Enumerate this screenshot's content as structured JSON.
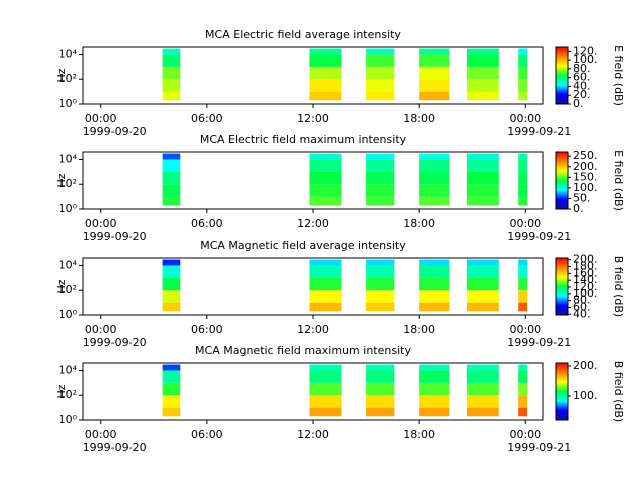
{
  "chart_data": [
    {
      "type": "spectrogram",
      "title": "MCA  Electric field average intensity",
      "ylabel": "Hz",
      "zlabel": "E field (dB)",
      "log_y": true,
      "xlim": [
        -1,
        25
      ],
      "ylim": [
        1,
        40000
      ],
      "xticks": [
        {
          "value": 0,
          "label": "00:00"
        },
        {
          "value": 6,
          "label": "06:00"
        },
        {
          "value": 12,
          "label": "12:00"
        },
        {
          "value": 18,
          "label": "18:00"
        },
        {
          "value": 24,
          "label": "00:00"
        }
      ],
      "xdates": [
        {
          "value": 0,
          "label": "1999-09-20"
        },
        {
          "value": 24,
          "label": "1999-09-21"
        }
      ],
      "yticks": [
        {
          "value": 1,
          "label": "10⁰"
        },
        {
          "value": 100,
          "label": "10²"
        },
        {
          "value": 10000,
          "label": "10⁴"
        }
      ],
      "zlim": [
        0,
        130
      ],
      "zticks": [
        {
          "value": 0,
          "label": "0."
        },
        {
          "value": 20,
          "label": "20."
        },
        {
          "value": 40,
          "label": "40."
        },
        {
          "value": 60,
          "label": "60."
        },
        {
          "value": 80,
          "label": "80."
        },
        {
          "value": 100,
          "label": "100."
        },
        {
          "value": 120,
          "label": "120."
        }
      ],
      "colormap": [
        "#10109a",
        "#0000ff",
        "#00ffff",
        "#00ff40",
        "#ffff00",
        "#ff8000",
        "#ff0000"
      ],
      "bands": [
        2,
        10,
        100,
        1000,
        10000,
        30000
      ],
      "segments": [
        {
          "start": 3.5,
          "end": 4.5,
          "values": [
            85,
            80,
            75,
            60,
            50
          ]
        },
        {
          "start": 11.8,
          "end": 13.6,
          "values": [
            95,
            90,
            80,
            65,
            55
          ]
        },
        {
          "start": 15.0,
          "end": 16.6,
          "values": [
            90,
            85,
            80,
            70,
            50
          ]
        },
        {
          "start": 18.0,
          "end": 19.7,
          "values": [
            100,
            90,
            85,
            70,
            55
          ]
        },
        {
          "start": 20.7,
          "end": 22.5,
          "values": [
            85,
            80,
            75,
            65,
            55
          ]
        },
        {
          "start": 23.6,
          "end": 24.1,
          "values": [
            80,
            75,
            70,
            60,
            45
          ]
        }
      ]
    },
    {
      "type": "spectrogram",
      "title": "MCA  Electric field maximum intensity",
      "ylabel": "Hz",
      "zlabel": "E field (dB)",
      "log_y": true,
      "xlim": [
        -1,
        25
      ],
      "ylim": [
        1,
        40000
      ],
      "xticks": [
        {
          "value": 0,
          "label": "00:00"
        },
        {
          "value": 6,
          "label": "06:00"
        },
        {
          "value": 12,
          "label": "12:00"
        },
        {
          "value": 18,
          "label": "18:00"
        },
        {
          "value": 24,
          "label": "00:00"
        }
      ],
      "xdates": [
        {
          "value": 0,
          "label": "1999-09-20"
        },
        {
          "value": 24,
          "label": "1999-09-21"
        }
      ],
      "yticks": [
        {
          "value": 1,
          "label": "10⁰"
        },
        {
          "value": 100,
          "label": "10²"
        },
        {
          "value": 10000,
          "label": "10⁴"
        }
      ],
      "zlim": [
        0,
        270
      ],
      "zticks": [
        {
          "value": 0,
          "label": "0."
        },
        {
          "value": 50,
          "label": "50."
        },
        {
          "value": 100,
          "label": "100."
        },
        {
          "value": 150,
          "label": "150."
        },
        {
          "value": 200,
          "label": "200."
        },
        {
          "value": 250,
          "label": "250."
        }
      ],
      "colormap": [
        "#10109a",
        "#0000ff",
        "#00ffff",
        "#00ff40",
        "#ffff00",
        "#ff8000",
        "#ff0000"
      ],
      "bands": [
        2,
        10,
        100,
        1000,
        10000,
        30000
      ],
      "segments": [
        {
          "start": 3.5,
          "end": 4.5,
          "values": [
            140,
            130,
            120,
            90,
            60
          ]
        },
        {
          "start": 11.8,
          "end": 13.6,
          "values": [
            150,
            140,
            135,
            120,
            100
          ]
        },
        {
          "start": 15.0,
          "end": 16.6,
          "values": [
            145,
            140,
            130,
            115,
            95
          ]
        },
        {
          "start": 18.0,
          "end": 19.7,
          "values": [
            150,
            140,
            130,
            120,
            95
          ]
        },
        {
          "start": 20.7,
          "end": 22.5,
          "values": [
            145,
            140,
            135,
            115,
            100
          ]
        },
        {
          "start": 23.6,
          "end": 24.1,
          "values": [
            140,
            135,
            130,
            120,
            110
          ]
        }
      ]
    },
    {
      "type": "spectrogram",
      "title": "MCA  Magnetic field average intensity",
      "ylabel": "Hz",
      "zlabel": "B field (dB)",
      "log_y": true,
      "xlim": [
        -1,
        25
      ],
      "ylim": [
        1,
        40000
      ],
      "xticks": [
        {
          "value": 0,
          "label": "00:00"
        },
        {
          "value": 6,
          "label": "06:00"
        },
        {
          "value": 12,
          "label": "12:00"
        },
        {
          "value": 18,
          "label": "18:00"
        },
        {
          "value": 24,
          "label": "00:00"
        }
      ],
      "xdates": [
        {
          "value": 0,
          "label": "1999-09-20"
        },
        {
          "value": 24,
          "label": "1999-09-21"
        }
      ],
      "yticks": [
        {
          "value": 1,
          "label": "10⁰"
        },
        {
          "value": 100,
          "label": "10²"
        },
        {
          "value": 10000,
          "label": "10⁴"
        }
      ],
      "zlim": [
        38,
        205
      ],
      "zticks": [
        {
          "value": 40,
          "label": "40."
        },
        {
          "value": 60,
          "label": "60."
        },
        {
          "value": 80,
          "label": "80."
        },
        {
          "value": 100,
          "label": "100."
        },
        {
          "value": 120,
          "label": "120."
        },
        {
          "value": 140,
          "label": "140."
        },
        {
          "value": 160,
          "label": "160."
        },
        {
          "value": 180,
          "label": "180."
        },
        {
          "value": 200,
          "label": "200."
        }
      ],
      "colormap": [
        "#10109a",
        "#0000ff",
        "#00ffff",
        "#00ff40",
        "#ffff00",
        "#ff8000",
        "#ff0000"
      ],
      "bands": [
        2,
        10,
        100,
        1000,
        10000,
        30000
      ],
      "segments": [
        {
          "start": 3.5,
          "end": 4.5,
          "values": [
            160,
            145,
            120,
            100,
            70
          ]
        },
        {
          "start": 11.8,
          "end": 13.6,
          "values": [
            165,
            150,
            125,
            105,
            90
          ]
        },
        {
          "start": 15.0,
          "end": 16.6,
          "values": [
            160,
            150,
            125,
            105,
            90
          ]
        },
        {
          "start": 18.0,
          "end": 19.7,
          "values": [
            165,
            150,
            125,
            110,
            90
          ]
        },
        {
          "start": 20.7,
          "end": 22.5,
          "values": [
            165,
            150,
            125,
            105,
            90
          ]
        },
        {
          "start": 23.6,
          "end": 24.1,
          "values": [
            185,
            160,
            125,
            100,
            90
          ]
        }
      ]
    },
    {
      "type": "spectrogram",
      "title": "MCA  Magnetic field maximum intensity",
      "ylabel": "Hz",
      "zlabel": "B field (dB)",
      "log_y": true,
      "xlim": [
        -1,
        25
      ],
      "ylim": [
        1,
        40000
      ],
      "xticks": [
        {
          "value": 0,
          "label": "00:00"
        },
        {
          "value": 6,
          "label": "06:00"
        },
        {
          "value": 12,
          "label": "12:00"
        },
        {
          "value": 18,
          "label": "18:00"
        },
        {
          "value": 24,
          "label": "00:00"
        }
      ],
      "xdates": [
        {
          "value": 0,
          "label": "1999-09-20"
        },
        {
          "value": 24,
          "label": "1999-09-21"
        }
      ],
      "yticks": [
        {
          "value": 1,
          "label": "10⁰"
        },
        {
          "value": 100,
          "label": "10²"
        },
        {
          "value": 10000,
          "label": "10⁴"
        }
      ],
      "zlim": [
        20,
        210
      ],
      "zticks": [
        {
          "value": 100,
          "label": "100."
        },
        {
          "value": 200,
          "label": "200."
        }
      ],
      "colormap": [
        "#10109a",
        "#0000ff",
        "#00ffff",
        "#00ff40",
        "#ffff00",
        "#ff8000",
        "#ff0000"
      ],
      "bands": [
        2,
        10,
        100,
        1000,
        10000,
        30000
      ],
      "segments": [
        {
          "start": 3.5,
          "end": 4.5,
          "values": [
            160,
            150,
            120,
            100,
            60
          ]
        },
        {
          "start": 11.8,
          "end": 13.6,
          "values": [
            170,
            155,
            125,
            105,
            95
          ]
        },
        {
          "start": 15.0,
          "end": 16.6,
          "values": [
            170,
            155,
            125,
            105,
            95
          ]
        },
        {
          "start": 18.0,
          "end": 19.7,
          "values": [
            170,
            155,
            125,
            110,
            95
          ]
        },
        {
          "start": 20.7,
          "end": 22.5,
          "values": [
            170,
            155,
            125,
            105,
            95
          ]
        },
        {
          "start": 23.6,
          "end": 24.1,
          "values": [
            190,
            165,
            130,
            110,
            95
          ]
        }
      ]
    }
  ]
}
